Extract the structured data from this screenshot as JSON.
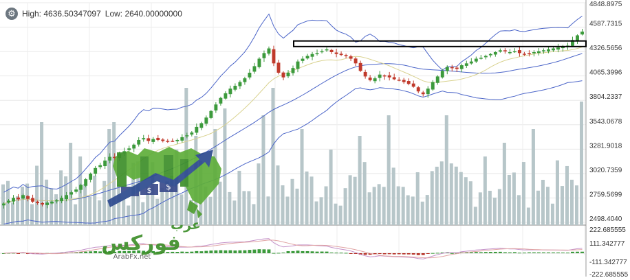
{
  "header": {
    "settings_icon": "gear-icon",
    "high_label": "High: 4636.50347097",
    "low_label": "Low: 2640.00000000"
  },
  "chart_data": [
    {
      "type": "candlestick",
      "price_axis_ticks": [
        "4848.8975",
        "4587.7315",
        "4326.5656",
        "4065.3996",
        "3804.2337",
        "3543.0678",
        "3281.9018",
        "3020.7359",
        "2759.5699",
        "2498.4040"
      ],
      "ylim": [
        2498.404,
        4848.8975
      ],
      "grid": true,
      "colors": {
        "up": "#3c9a3c",
        "down": "#c0392b",
        "volume": "#b7c6c9",
        "bollinger": "#4a64c8",
        "sma": "#d9d28f",
        "resistance_box": "#000000"
      },
      "resistance_zone": [
        4380,
        4440
      ],
      "price_path": [
        2700,
        2730,
        2760,
        2745,
        2790,
        2750,
        2720,
        2705,
        2690,
        2710,
        2720,
        2735,
        2760,
        2790,
        2820,
        2850,
        2900,
        2960,
        3020,
        3080,
        3110,
        3160,
        3200,
        3190,
        3230,
        3260,
        3290,
        3330,
        3380,
        3400,
        3370,
        3390,
        3380,
        3370,
        3360,
        3370,
        3380,
        3410,
        3430,
        3460,
        3520,
        3560,
        3620,
        3690,
        3760,
        3830,
        3880,
        3930,
        3960,
        4000,
        4040,
        4100,
        4170,
        4250,
        4310,
        4360,
        4200,
        4100,
        4050,
        4100,
        4150,
        4220,
        4250,
        4280,
        4300,
        4310,
        4330,
        4350,
        4320,
        4300,
        4290,
        4280,
        4250,
        4200,
        4120,
        4060,
        4020,
        4040,
        4080,
        4060,
        4050,
        4030,
        4020,
        4000,
        3980,
        3950,
        3900,
        3870,
        3930,
        4000,
        4060,
        4120,
        4160,
        4150,
        4140,
        4180,
        4200,
        4220,
        4250,
        4260,
        4280,
        4300,
        4320,
        4340,
        4330,
        4320,
        4330,
        4310,
        4300,
        4310,
        4320,
        4330,
        4340,
        4350,
        4360,
        4370,
        4380,
        4390,
        4450,
        4500,
        4540
      ]
    },
    {
      "type": "histogram",
      "oscillator_axis_ticks": [
        "222.685555",
        "111.342777",
        "-111.342777",
        "-222.685555"
      ],
      "ylim": [
        -222.685555,
        222.685555
      ],
      "colors": {
        "positive": "#3c9a3c",
        "negative": "#b42a1e",
        "macd_line": "#c390c8",
        "signal_line": "#e0a3a3"
      }
    }
  ],
  "watermark": {
    "brand_top": "عرب",
    "brand_main": "فوركس",
    "site": "ArabFx.net"
  }
}
